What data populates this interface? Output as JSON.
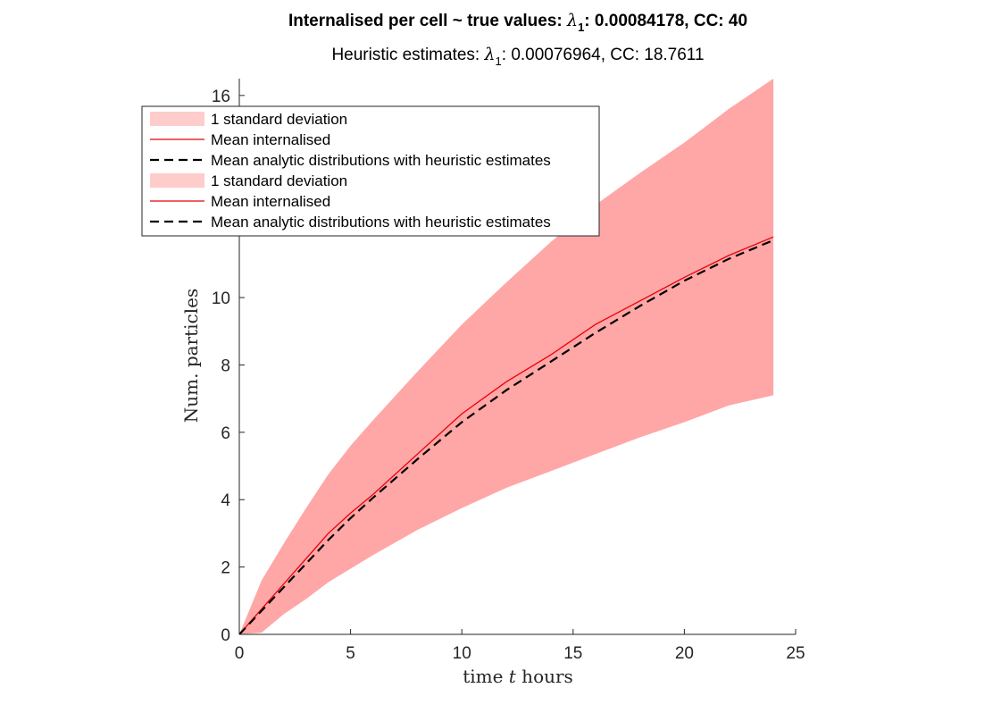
{
  "title": {
    "line1_prefix": "Internalised per cell ~ true values: ",
    "lambda_symbol": "λ",
    "lambda_sub": "1",
    "line1_rest": ": 0.00084178, CC: 40",
    "line2_prefix": "Heuristic estimates: ",
    "line2_rest": ": 0.00076964, CC: 18.7611"
  },
  "xlabel_parts": {
    "a": "time ",
    "b": "t",
    "c": " hours"
  },
  "ylabel": "Num. particles",
  "legend": [
    {
      "label": "1 standard deviation",
      "kind": "band"
    },
    {
      "label": "Mean internalised",
      "kind": "line"
    },
    {
      "label": "Mean analytic distributions with heuristic estimates",
      "kind": "dash"
    },
    {
      "label": "1 standard deviation",
      "kind": "band"
    },
    {
      "label": "Mean internalised",
      "kind": "line"
    },
    {
      "label": "Mean analytic distributions with heuristic estimates",
      "kind": "dash"
    }
  ],
  "colors": {
    "band": "#ffa6a6",
    "band_legend": "#ffcccc",
    "mean": "#e8000b",
    "analytic": "#000000",
    "axis": "#262626"
  },
  "chart_data": {
    "type": "area",
    "xlim": [
      0,
      25
    ],
    "ylim": [
      0,
      16.5
    ],
    "xticks": [
      0,
      5,
      10,
      15,
      20,
      25
    ],
    "yticks": [
      0,
      2,
      4,
      6,
      8,
      10,
      12,
      14,
      16
    ],
    "grid": false,
    "legend_position": "top-left",
    "x": [
      0,
      1,
      2,
      3,
      4,
      5,
      6,
      8,
      10,
      12,
      14,
      16,
      18,
      20,
      22,
      24
    ],
    "series": [
      {
        "name": "Mean internalised",
        "values": [
          0,
          0.75,
          1.5,
          2.25,
          3.0,
          3.6,
          4.15,
          5.35,
          6.55,
          7.5,
          8.3,
          9.2,
          9.9,
          10.6,
          11.25,
          11.8
        ]
      },
      {
        "name": "Mean analytic distributions with heuristic estimates",
        "values": [
          0,
          0.7,
          1.4,
          2.1,
          2.8,
          3.45,
          4.05,
          5.2,
          6.3,
          7.25,
          8.1,
          8.95,
          9.75,
          10.5,
          11.15,
          11.7
        ]
      },
      {
        "name": "1 standard deviation upper",
        "values": [
          0,
          1.6,
          2.7,
          3.75,
          4.75,
          5.6,
          6.35,
          7.8,
          9.2,
          10.45,
          11.65,
          12.75,
          13.7,
          14.6,
          15.6,
          16.5
        ]
      },
      {
        "name": "1 standard deviation lower",
        "values": [
          0,
          0.05,
          0.6,
          1.05,
          1.55,
          1.95,
          2.35,
          3.1,
          3.75,
          4.35,
          4.85,
          5.35,
          5.85,
          6.3,
          6.8,
          7.1
        ]
      }
    ]
  }
}
